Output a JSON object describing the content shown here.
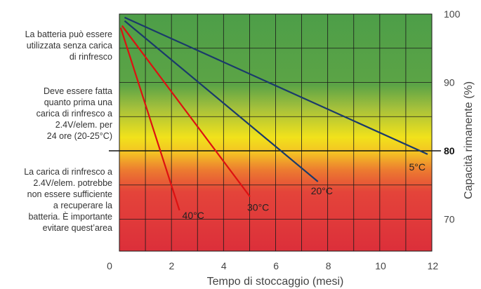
{
  "chart_data": {
    "type": "line",
    "xlabel": "Tempo di stoccaggio (mesi)",
    "ylabel": "Capacità rimanente (%)",
    "xlim": [
      0,
      12
    ],
    "ylim": [
      65,
      100
    ],
    "x_ticks": [
      "0",
      "2",
      "4",
      "6",
      "8",
      "10",
      "12"
    ],
    "y_ticks": [
      "70",
      "80",
      "90",
      "100"
    ],
    "threshold": {
      "y": 80,
      "label": "80"
    },
    "grid": true,
    "series": [
      {
        "name": "5°C",
        "color": "#1a3a6b",
        "x": [
          0.2,
          11.8
        ],
        "y": [
          99.5,
          79.5
        ]
      },
      {
        "name": "20°C",
        "color": "#1a3a6b",
        "x": [
          0.2,
          7.6
        ],
        "y": [
          99.0,
          75.5
        ]
      },
      {
        "name": "30°C",
        "color": "#dd1111",
        "x": [
          0.1,
          5.0
        ],
        "y": [
          98.3,
          73.3
        ]
      },
      {
        "name": "40°C",
        "color": "#dd1111",
        "x": [
          0.05,
          2.3
        ],
        "y": [
          98.0,
          71.3
        ]
      }
    ],
    "zones": [
      {
        "text": [
          "La batteria può essere",
          "utilizzata senza carica",
          "di rinfresco"
        ]
      },
      {
        "text": [
          "Deve essere fatta",
          "quanto prima una",
          "carica di rinfresco a",
          "2.4V/elem. per",
          "24 ore (20-25°C)"
        ]
      },
      {
        "text": [
          "La carica di rinfresco a",
          "2.4V/elem. potrebbe",
          "non essere sufficiente",
          "a recuperare la",
          "batteria.  È importante",
          "evitare quest’area"
        ]
      }
    ]
  }
}
